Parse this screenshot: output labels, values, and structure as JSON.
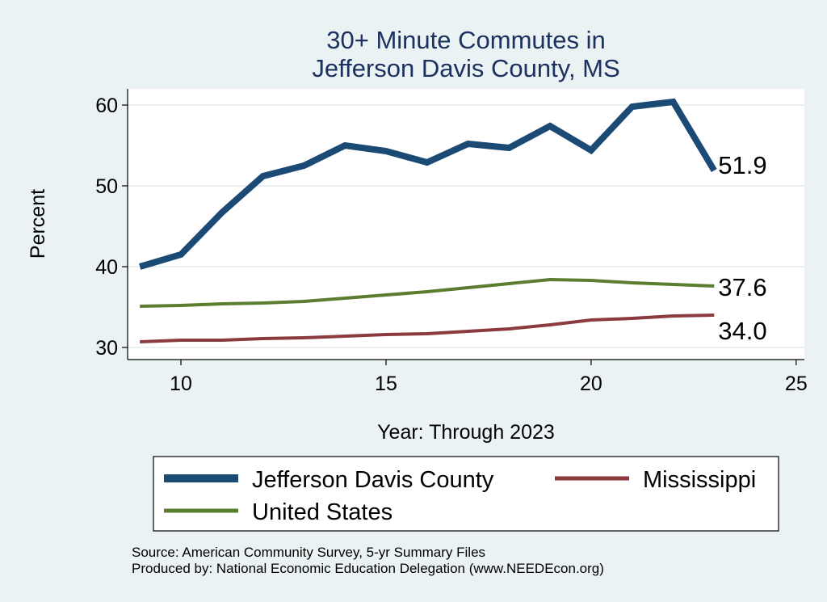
{
  "chart_data": {
    "type": "line",
    "title": [
      "30+ Minute Commutes in",
      "Jefferson Davis County, MS"
    ],
    "xlabel": "Year: Through 2023",
    "ylabel": "Percent",
    "xlim": [
      8.7,
      25.2
    ],
    "ylim": [
      28.5,
      62
    ],
    "xticks": [
      10,
      15,
      20,
      25
    ],
    "yticks": [
      30,
      40,
      50,
      60
    ],
    "grid": true,
    "series": [
      {
        "name": "Jefferson Davis County",
        "color": "#1b4a75",
        "width": "thick",
        "x": [
          9,
          10,
          11,
          12,
          13,
          14,
          15,
          16,
          17,
          18,
          19,
          20,
          21,
          22,
          23
        ],
        "values": [
          40.0,
          41.5,
          46.7,
          51.2,
          52.5,
          55.0,
          54.3,
          52.9,
          55.2,
          54.7,
          57.4,
          54.4,
          59.8,
          60.4,
          51.9
        ],
        "end_label": "51.9"
      },
      {
        "name": "United States",
        "color": "#5b7d2f",
        "width": "medium",
        "x": [
          9,
          10,
          11,
          12,
          13,
          14,
          15,
          16,
          17,
          18,
          19,
          20,
          21,
          22,
          23
        ],
        "values": [
          35.1,
          35.2,
          35.4,
          35.5,
          35.7,
          36.1,
          36.5,
          36.9,
          37.4,
          37.9,
          38.4,
          38.3,
          38.0,
          37.8,
          37.6
        ],
        "end_label": "37.6"
      },
      {
        "name": "Mississippi",
        "color": "#8b3a3e",
        "width": "medium",
        "x": [
          9,
          10,
          11,
          12,
          13,
          14,
          15,
          16,
          17,
          18,
          19,
          20,
          21,
          22,
          23
        ],
        "values": [
          30.7,
          30.9,
          30.9,
          31.1,
          31.2,
          31.4,
          31.6,
          31.7,
          32.0,
          32.3,
          32.8,
          33.4,
          33.6,
          33.9,
          34.0
        ],
        "end_label": "34.0"
      }
    ],
    "legend": {
      "placement": "bottom",
      "items": [
        {
          "label": "Jefferson Davis County",
          "series": "Jefferson Davis County"
        },
        {
          "label": "Mississippi",
          "series": "Mississippi"
        },
        {
          "label": "United States",
          "series": "United States"
        }
      ]
    },
    "notes": [
      "Source: American Community Survey, 5-yr Summary Files",
      "Produced by: National Economic Education Delegation (www.NEEDEcon.org)"
    ]
  }
}
